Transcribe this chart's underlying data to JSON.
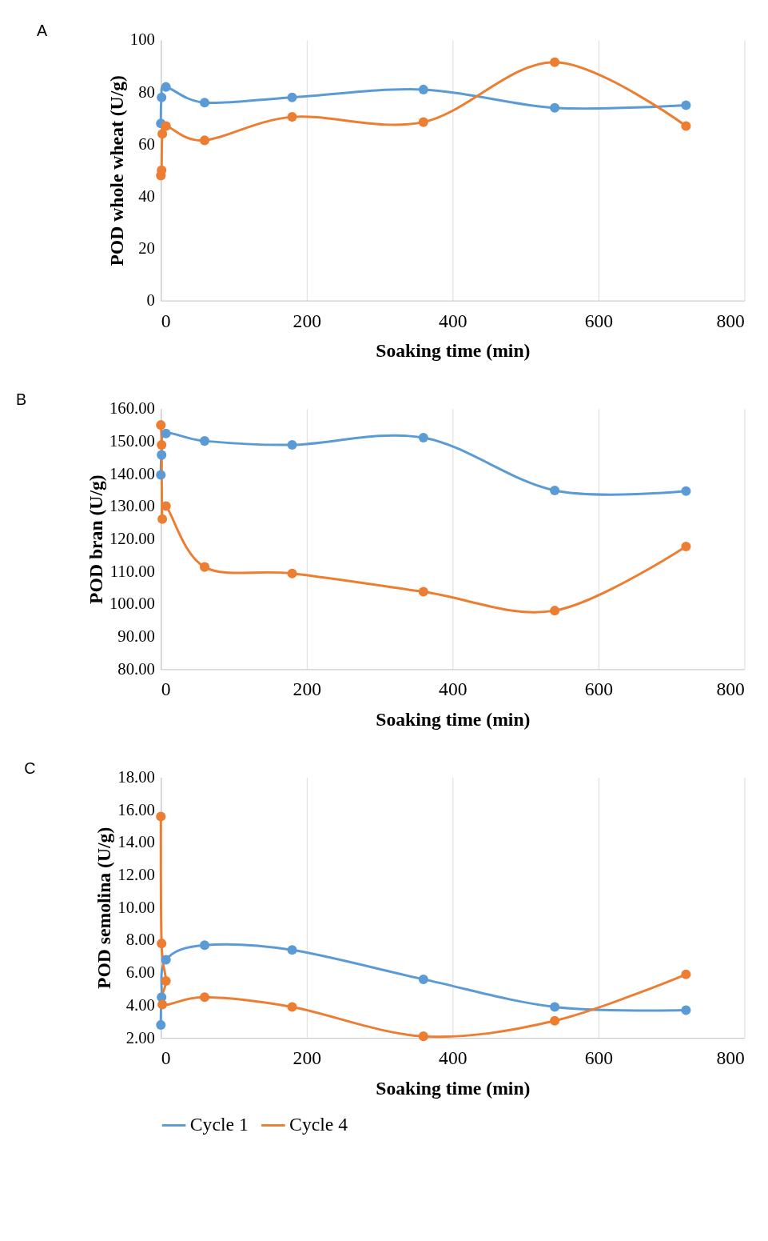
{
  "chart_data": [
    {
      "type": "line",
      "title": "A",
      "xlabel": "Soaking time (min)",
      "ylabel": "POD whole wheat (U/g)",
      "xlim": [
        0,
        800
      ],
      "xticks": [
        0,
        200,
        400,
        600,
        800
      ],
      "ylim": [
        0,
        100
      ],
      "yticks": [
        0,
        20,
        40,
        60,
        80,
        100
      ],
      "grid": "x",
      "marker": "circle",
      "legend": false,
      "series": [
        {
          "color": "#5b9bd5",
          "x": [
            0,
            1,
            7,
            60,
            180,
            360,
            540,
            720
          ],
          "values": [
            68,
            78,
            82,
            76,
            78,
            81,
            74,
            75
          ]
        },
        {
          "color": "#ed7d31",
          "x": [
            0,
            1,
            2,
            7,
            60,
            180,
            360,
            540,
            720
          ],
          "values": [
            48,
            50,
            64,
            67,
            61.5,
            70.5,
            68.5,
            91.5,
            67
          ]
        }
      ]
    },
    {
      "type": "line",
      "title": "B",
      "xlabel": "Soaking time (min)",
      "ylabel": "POD bran (U/g)",
      "xlim": [
        0,
        800
      ],
      "xticks": [
        0,
        200,
        400,
        600,
        800
      ],
      "ylim": [
        80,
        160
      ],
      "yticks": [
        {
          "value": 80,
          "label": "80.00"
        },
        {
          "value": 90,
          "label": "90.00"
        },
        {
          "value": 100,
          "label": "100.00"
        },
        {
          "value": 110,
          "label": "110.00"
        },
        {
          "value": 120,
          "label": "120.00"
        },
        {
          "value": 130,
          "label": "130.00"
        },
        {
          "value": 140,
          "label": "140.00"
        },
        {
          "value": 150,
          "label": "150.00"
        },
        {
          "value": 160,
          "label": "160.00"
        }
      ],
      "grid": "x",
      "marker": "circle",
      "legend": false,
      "series": [
        {
          "color": "#5b9bd5",
          "x": [
            0,
            1,
            7,
            60,
            180,
            360,
            540,
            720
          ],
          "values": [
            139.7,
            145.8,
            152.4,
            150.1,
            148.9,
            151.1,
            134.9,
            134.7
          ]
        },
        {
          "color": "#ed7d31",
          "x": [
            0,
            1,
            2,
            7,
            60,
            180,
            360,
            540,
            720
          ],
          "values": [
            155,
            148.9,
            126.1,
            130.1,
            111.4,
            109.4,
            103.8,
            98,
            117.7
          ]
        }
      ]
    },
    {
      "type": "line",
      "title": "C",
      "xlabel": "Soaking time (min)",
      "ylabel": "POD semolina (U/g)",
      "xlim": [
        0,
        800
      ],
      "xticks": [
        0,
        200,
        400,
        600,
        800
      ],
      "ylim": [
        2,
        18
      ],
      "yticks": [
        {
          "value": 2,
          "label": "2.00"
        },
        {
          "value": 4,
          "label": "4.00"
        },
        {
          "value": 6,
          "label": "6.00"
        },
        {
          "value": 8,
          "label": "8.00"
        },
        {
          "value": 10,
          "label": "10.00"
        },
        {
          "value": 12,
          "label": "12.00"
        },
        {
          "value": 14,
          "label": "14.00"
        },
        {
          "value": 16,
          "label": "16.00"
        },
        {
          "value": 18,
          "label": "18.00"
        }
      ],
      "grid": "x",
      "marker": "circle",
      "legend": "bottom",
      "series": [
        {
          "name": "Cycle 1",
          "color": "#5b9bd5",
          "x": [
            0,
            1,
            7,
            60,
            180,
            360,
            540,
            720
          ],
          "values": [
            2.8,
            4.5,
            6.8,
            7.7,
            7.4,
            5.6,
            3.9,
            3.7
          ]
        },
        {
          "name": "Cycle 4",
          "color": "#ed7d31",
          "x": [
            0,
            1,
            7,
            2,
            60,
            180,
            360,
            540,
            720
          ],
          "values": [
            15.6,
            7.8,
            5.5,
            4.05,
            4.5,
            3.9,
            2.1,
            3.05,
            5.9
          ]
        }
      ]
    }
  ]
}
